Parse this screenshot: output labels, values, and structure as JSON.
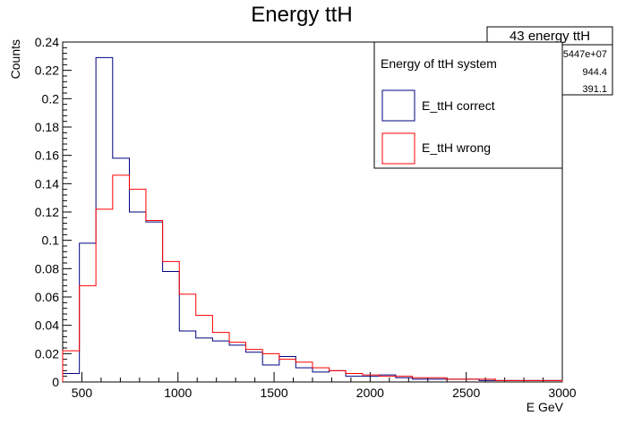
{
  "chart_data": {
    "type": "histogram",
    "title": "Energy ttH",
    "xlabel": "E GeV",
    "ylabel": "Counts",
    "xlim": [
      400,
      3000
    ],
    "ylim": [
      0,
      0.24
    ],
    "x_ticks": [
      500,
      1000,
      1500,
      2000,
      2500,
      3000
    ],
    "y_ticks": [
      0,
      0.02,
      0.04,
      0.06,
      0.08,
      0.1,
      0.12,
      0.14,
      0.16,
      0.18,
      0.2,
      0.22,
      0.24
    ],
    "grid": false,
    "bin_edges": [
      400,
      487,
      573,
      660,
      747,
      833,
      920,
      1007,
      1093,
      1180,
      1267,
      1353,
      1440,
      1527,
      1613,
      1700,
      1787,
      1873,
      1960,
      2047,
      2133,
      2220,
      2307,
      2393,
      2480,
      2567,
      2653,
      2740,
      2827,
      2913,
      3000
    ],
    "series": [
      {
        "name": "E_ttH correct",
        "color": "#000080",
        "values": [
          0.006,
          0.098,
          0.229,
          0.158,
          0.12,
          0.113,
          0.078,
          0.036,
          0.031,
          0.029,
          0.026,
          0.021,
          0.012,
          0.018,
          0.01,
          0.007,
          0.008,
          0.004,
          0.004,
          0.005,
          0.003,
          0.002,
          0.002,
          0.002,
          0.002,
          0.001,
          0.001,
          0.001,
          0.001,
          0.001
        ]
      },
      {
        "name": "E_ttH wrong",
        "color": "#ff0000",
        "values": [
          0.022,
          0.068,
          0.122,
          0.146,
          0.136,
          0.114,
          0.085,
          0.062,
          0.047,
          0.035,
          0.028,
          0.023,
          0.02,
          0.016,
          0.014,
          0.01,
          0.008,
          0.006,
          0.005,
          0.004,
          0.004,
          0.003,
          0.003,
          0.002,
          0.002,
          0.002,
          0.001,
          0.001,
          0.001,
          0.001
        ]
      }
    ],
    "stats_box": {
      "title": "43 energy ttH",
      "rows": [
        "5447e+07",
        "944.4",
        "391.1"
      ]
    },
    "legend": {
      "title": "Energy of ttH system",
      "placement": "top-right"
    }
  }
}
